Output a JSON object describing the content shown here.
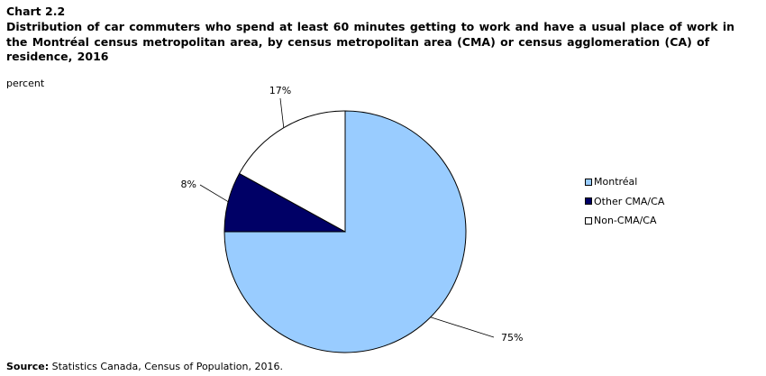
{
  "header": {
    "chart_number": "Chart 2.2",
    "title": "Distribution of car commuters who spend at least 60 minutes getting to work and have a usual place of work in the Montréal census metropolitan area, by census metropolitan area (CMA) or census agglomeration (CA) of residence, 2016"
  },
  "chart_data": {
    "type": "pie",
    "unit_label": "percent",
    "slices": [
      {
        "name": "Montréal",
        "value": 75,
        "label": "75%",
        "color": "#99ccff"
      },
      {
        "name": "Other CMA/CA",
        "value": 8,
        "label": "8%",
        "color": "#000066"
      },
      {
        "name": "Non-CMA/CA",
        "value": 17,
        "label": "17%",
        "color": "#ffffff"
      }
    ],
    "legend_position": "right",
    "start_angle": "12 o'clock, clockwise"
  },
  "footer": {
    "source_label": "Source:",
    "source_text": " Statistics Canada, Census of Population, 2016."
  }
}
